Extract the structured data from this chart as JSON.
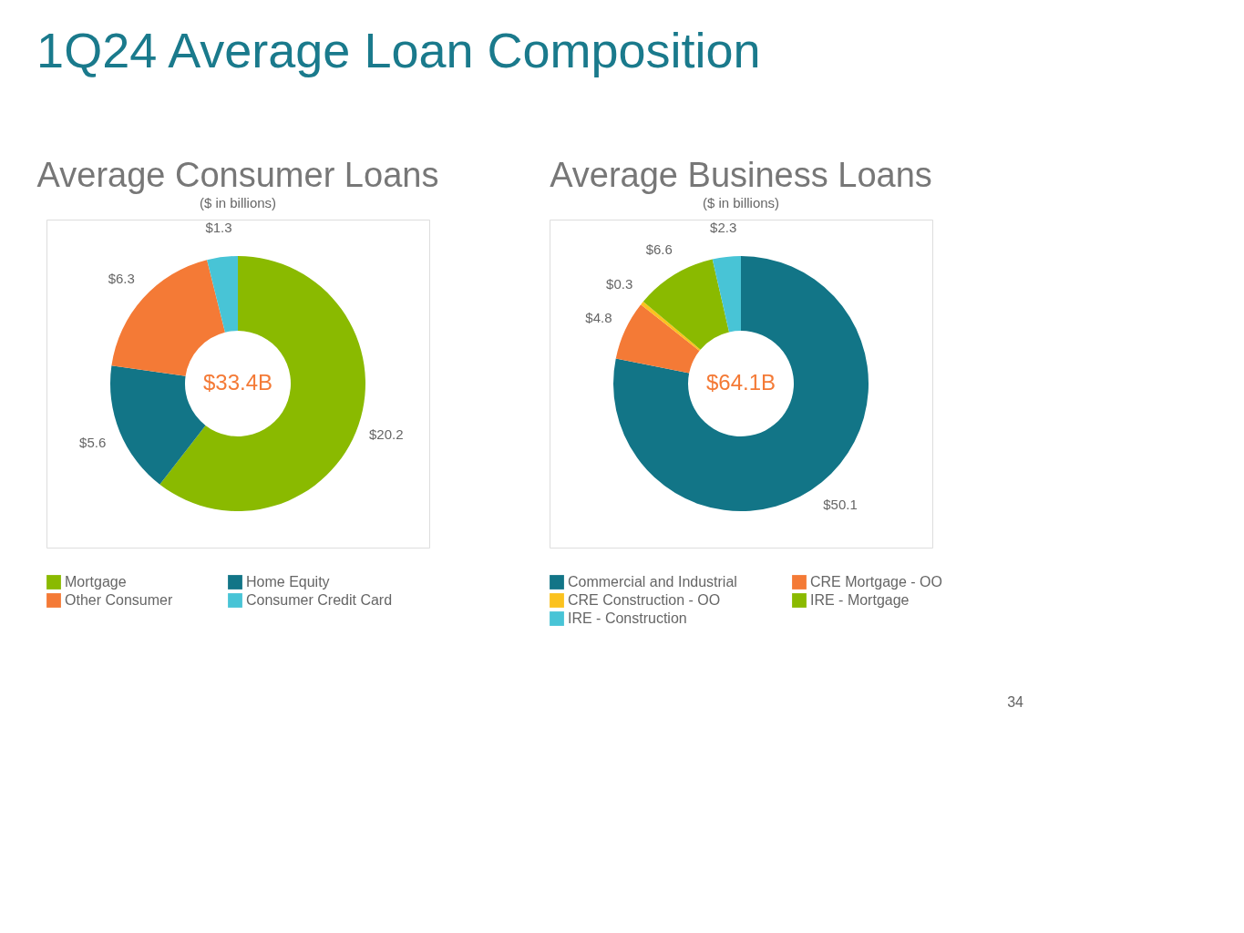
{
  "chart_data": [
    {
      "type": "donut",
      "title": "Average Consumer Loans",
      "subtitle": "($ in billions)",
      "categories": [
        "Mortgage",
        "Home Equity",
        "Other Consumer",
        "Consumer Credit Card"
      ],
      "values": [
        20.2,
        5.6,
        6.3,
        1.3
      ],
      "colors": [
        "#8aba00",
        "#127587",
        "#f47a36",
        "#48c4d6"
      ],
      "value_labels": [
        "$20.2",
        "$5.6",
        "$6.3",
        "$1.3"
      ],
      "legend": "bottom",
      "annotations": [
        "$33.4B",
        "1Q24 Average Loan Composition"
      ]
    },
    {
      "type": "donut",
      "title": "Average Business Loans",
      "subtitle": "($ in billions)",
      "categories": [
        "Commercial and Industrial",
        "CRE Mortgage - OO",
        "CRE Construction - OO",
        "IRE - Mortgage",
        "IRE - Construction"
      ],
      "values": [
        50.1,
        4.8,
        0.3,
        6.6,
        2.3
      ],
      "colors": [
        "#127587",
        "#f47a36",
        "#fbc21e",
        "#8aba00",
        "#48c4d6"
      ],
      "value_labels": [
        "$50.1",
        "$4.8",
        "$0.3",
        "$6.6",
        "$2.3"
      ],
      "legend": "bottom",
      "annotations": [
        "$64.1B",
        "34"
      ]
    }
  ]
}
